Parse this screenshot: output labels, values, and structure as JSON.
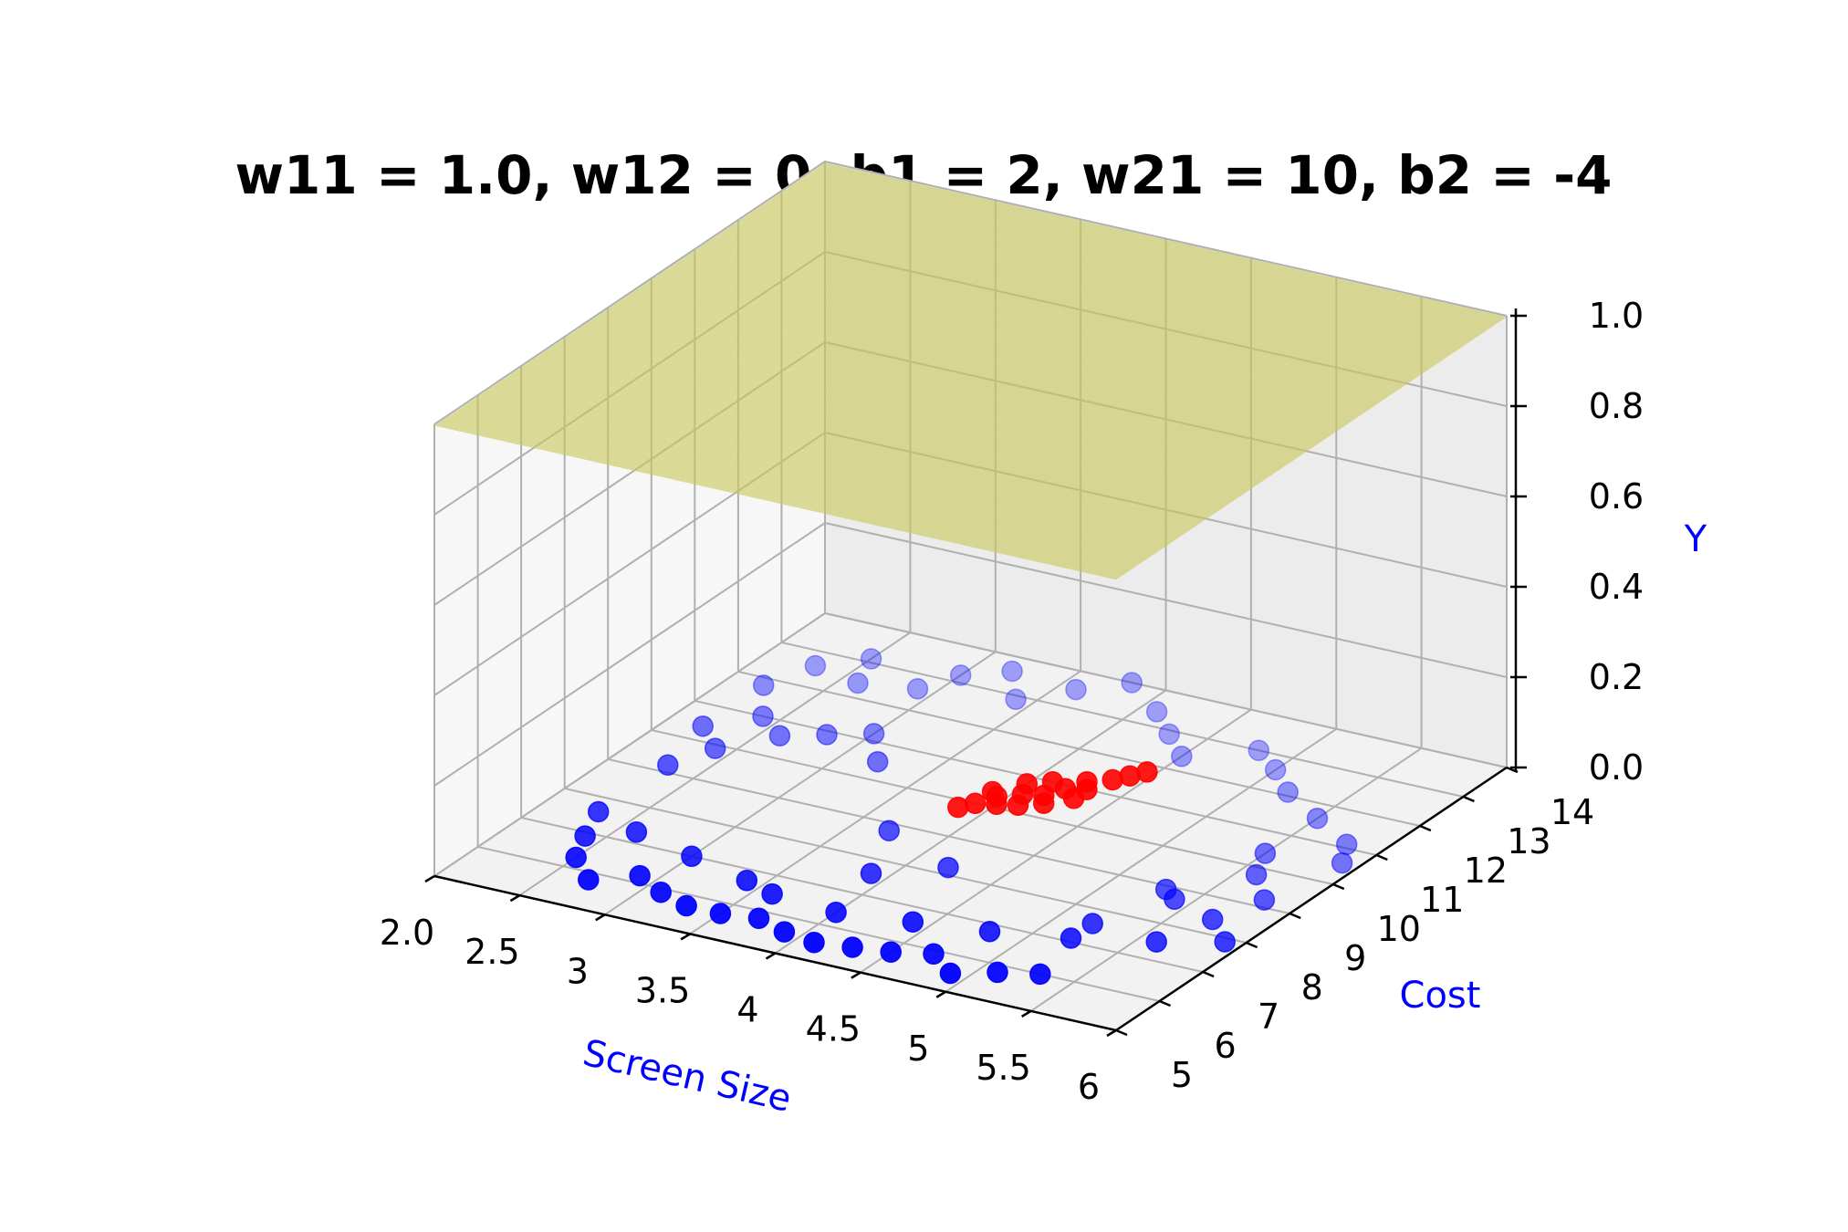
{
  "chart_data": {
    "type": "3d-surface-scatter",
    "title": "w11 = 1.0, w12 = 0, b1 = 2, w21 = 10, b2 = -4",
    "xlabel": "Screen Size",
    "ylabel": "Cost",
    "zlabel": "Y",
    "label_color": "#0000ff",
    "surface_color": "#e8e800",
    "xlim": [
      2.0,
      6.0
    ],
    "ylim": [
      5,
      14
    ],
    "zlim": [
      0.0,
      1.0
    ],
    "x_ticks": [
      "2.0",
      "2.5",
      "3",
      "3.5",
      "4",
      "4.5",
      "5",
      "5.5",
      "6"
    ],
    "x_tick_values": [
      2.0,
      2.5,
      3.0,
      3.5,
      4.0,
      4.5,
      5.0,
      5.5,
      6.0
    ],
    "y_ticks": [
      "5",
      "6",
      "7",
      "8",
      "9",
      "10",
      "11",
      "12",
      "13",
      "14"
    ],
    "y_tick_values": [
      5,
      6,
      7,
      8,
      9,
      10,
      11,
      12,
      13,
      14
    ],
    "z_ticks": [
      "0.0",
      "0.2",
      "0.4",
      "0.6",
      "0.8",
      "1.0"
    ],
    "z_tick_values": [
      0.0,
      0.2,
      0.4,
      0.6,
      0.8,
      1.0
    ],
    "surface": {
      "w11": 1.0,
      "w12": 0,
      "b1": 2,
      "w21": 10,
      "b2": -4
    },
    "series": [
      {
        "name": "",
        "color": "#0000ff",
        "points": [
          [
            2.4,
            6.9
          ],
          [
            2.5,
            6.3
          ],
          [
            2.7,
            5.8
          ],
          [
            2.9,
            6.2
          ],
          [
            3.1,
            5.9
          ],
          [
            3.3,
            5.7
          ],
          [
            3.5,
            5.7
          ],
          [
            3.7,
            5.8
          ],
          [
            3.9,
            5.6
          ],
          [
            4.1,
            5.5
          ],
          [
            4.3,
            5.6
          ],
          [
            4.5,
            5.7
          ],
          [
            4.7,
            5.9
          ],
          [
            4.9,
            5.5
          ],
          [
            5.1,
            5.8
          ],
          [
            5.3,
            6.0
          ],
          [
            2.3,
            7.6
          ],
          [
            2.6,
            7.3
          ],
          [
            3.0,
            7.0
          ],
          [
            3.4,
            6.7
          ],
          [
            3.6,
            6.5
          ],
          [
            4.0,
            6.4
          ],
          [
            4.4,
            6.6
          ],
          [
            4.8,
            6.8
          ],
          [
            5.2,
            7.1
          ],
          [
            2.3,
            9.2
          ],
          [
            2.2,
            10.4
          ],
          [
            2.4,
            11.0
          ],
          [
            2.2,
            11.8
          ],
          [
            2.3,
            12.6
          ],
          [
            2.5,
            13.1
          ],
          [
            2.6,
            12.4
          ],
          [
            2.4,
            9.9
          ],
          [
            2.6,
            10.6
          ],
          [
            2.8,
            10.9
          ],
          [
            2.9,
            12.6
          ],
          [
            3.0,
            13.2
          ],
          [
            3.2,
            13.6
          ],
          [
            3.4,
            12.9
          ],
          [
            3.6,
            13.5
          ],
          [
            3.8,
            14.0
          ],
          [
            4.1,
            13.4
          ],
          [
            4.3,
            12.9
          ],
          [
            4.5,
            12.4
          ],
          [
            4.8,
            13.0
          ],
          [
            5.0,
            12.6
          ],
          [
            5.2,
            12.1
          ],
          [
            5.5,
            11.6
          ],
          [
            5.8,
            11.1
          ],
          [
            5.9,
            10.6
          ],
          [
            5.6,
            9.8
          ],
          [
            5.8,
            9.2
          ],
          [
            5.4,
            8.7
          ],
          [
            5.7,
            8.4
          ],
          [
            5.9,
            7.9
          ],
          [
            5.6,
            7.5
          ],
          [
            5.2,
            7.6
          ],
          [
            5.3,
            8.9
          ],
          [
            5.5,
            10.4
          ],
          [
            3.0,
            11.2
          ],
          [
            3.2,
            10.5
          ],
          [
            4.2,
            8.2
          ],
          [
            3.9,
            7.6
          ],
          [
            3.7,
            8.8
          ]
        ]
      },
      {
        "name": "",
        "color": "#ff0000",
        "points": [
          [
            3.85,
            9.8
          ],
          [
            3.9,
            10.0
          ],
          [
            3.95,
            10.3
          ],
          [
            4.0,
            10.1
          ],
          [
            4.05,
            10.5
          ],
          [
            4.1,
            10.2
          ],
          [
            4.15,
            10.6
          ],
          [
            4.2,
            10.9
          ],
          [
            4.25,
            11.2
          ],
          [
            4.3,
            11.0
          ],
          [
            4.35,
            11.4
          ],
          [
            4.4,
            11.6
          ],
          [
            4.45,
            11.8
          ],
          [
            3.9,
            10.4
          ],
          [
            4.0,
            10.8
          ],
          [
            4.1,
            11.0
          ],
          [
            4.2,
            10.4
          ],
          [
            4.3,
            10.7
          ]
        ]
      }
    ]
  }
}
